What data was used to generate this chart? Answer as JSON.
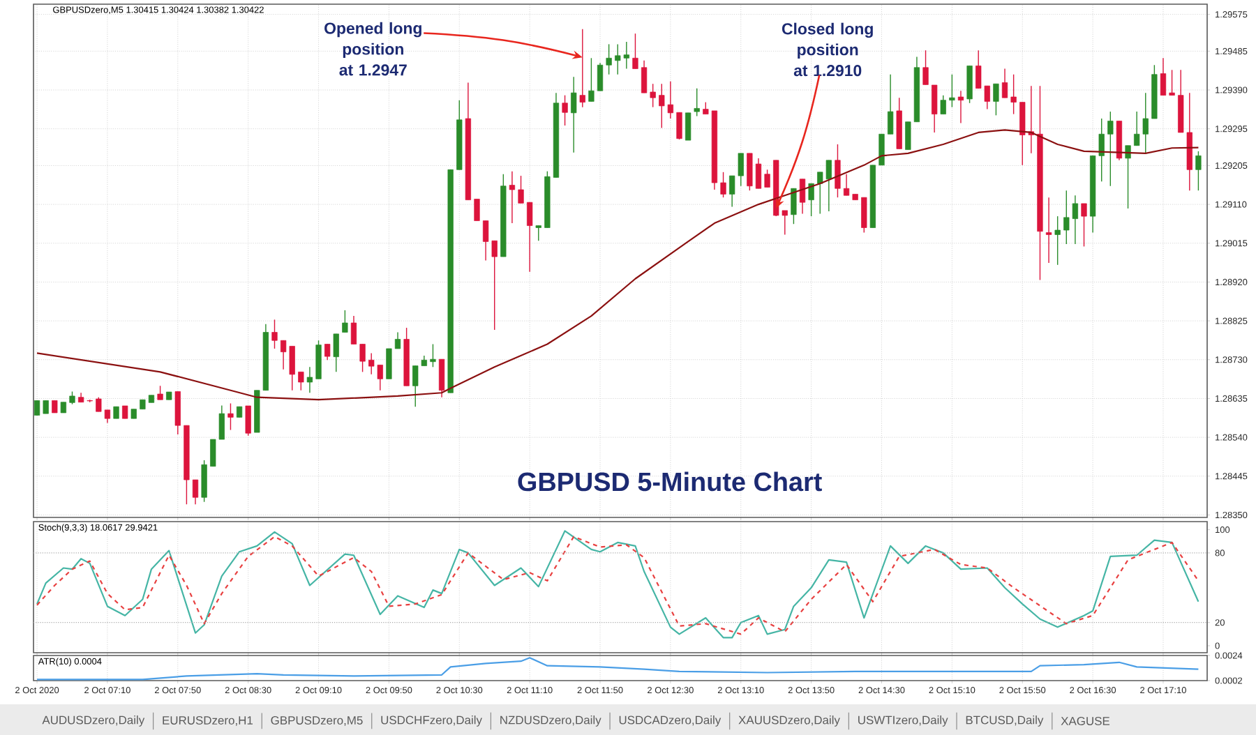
{
  "chart_data": [
    {
      "type": "candlestick",
      "title": "GBPUSD 5-Minute Chart",
      "subtitle": "GBPUSDzero,M5  1.30415 1.30424 1.30382 1.30422",
      "x": [
        "2020-10-02T06:30",
        "2020-10-02T06:35",
        "2020-10-02T06:40",
        "2020-10-02T06:45",
        "2020-10-02T06:50",
        "2020-10-02T06:55",
        "2020-10-02T07:00",
        "2020-10-02T07:05",
        "2020-10-02T07:10",
        "2020-10-02T07:15",
        "2020-10-02T07:20",
        "2020-10-02T07:25",
        "2020-10-02T07:30",
        "2020-10-02T07:35",
        "2020-10-02T07:40",
        "2020-10-02T07:45",
        "2020-10-02T07:50",
        "2020-10-02T07:55",
        "2020-10-02T08:00",
        "2020-10-02T08:05",
        "2020-10-02T08:10",
        "2020-10-02T08:15",
        "2020-10-02T08:20",
        "2020-10-02T08:25",
        "2020-10-02T08:30",
        "2020-10-02T08:35",
        "2020-10-02T08:40",
        "2020-10-02T08:45",
        "2020-10-02T08:50",
        "2020-10-02T08:55",
        "2020-10-02T09:00",
        "2020-10-02T09:05",
        "2020-10-02T09:10",
        "2020-10-02T09:15",
        "2020-10-02T09:20",
        "2020-10-02T09:25",
        "2020-10-02T09:30",
        "2020-10-02T09:35",
        "2020-10-02T09:40",
        "2020-10-02T09:45",
        "2020-10-02T09:50",
        "2020-10-02T09:55",
        "2020-10-02T10:00",
        "2020-10-02T10:05",
        "2020-10-02T10:10",
        "2020-10-02T10:15",
        "2020-10-02T10:20",
        "2020-10-02T10:25",
        "2020-10-02T10:30",
        "2020-10-02T10:35",
        "2020-10-02T10:40",
        "2020-10-02T10:45",
        "2020-10-02T10:50",
        "2020-10-02T10:55",
        "2020-10-02T11:00",
        "2020-10-02T11:05",
        "2020-10-02T11:10",
        "2020-10-02T11:15",
        "2020-10-02T11:20",
        "2020-10-02T11:25",
        "2020-10-02T11:30",
        "2020-10-02T11:35",
        "2020-10-02T11:40",
        "2020-10-02T11:45",
        "2020-10-02T11:50",
        "2020-10-02T11:55",
        "2020-10-02T12:00",
        "2020-10-02T12:05",
        "2020-10-02T12:10",
        "2020-10-02T12:15",
        "2020-10-02T12:20",
        "2020-10-02T12:25",
        "2020-10-02T12:30",
        "2020-10-02T12:35",
        "2020-10-02T12:40",
        "2020-10-02T12:45",
        "2020-10-02T12:50",
        "2020-10-02T12:55",
        "2020-10-02T13:00",
        "2020-10-02T13:05",
        "2020-10-02T13:10",
        "2020-10-02T13:15",
        "2020-10-02T13:20",
        "2020-10-02T13:25",
        "2020-10-02T13:30",
        "2020-10-02T13:35",
        "2020-10-02T13:40",
        "2020-10-02T13:45",
        "2020-10-02T13:50",
        "2020-10-02T13:55",
        "2020-10-02T14:00",
        "2020-10-02T14:05",
        "2020-10-02T14:10",
        "2020-10-02T14:15",
        "2020-10-02T14:20",
        "2020-10-02T14:25",
        "2020-10-02T14:30",
        "2020-10-02T14:35",
        "2020-10-02T14:40",
        "2020-10-02T14:45",
        "2020-10-02T14:50",
        "2020-10-02T14:55",
        "2020-10-02T15:00",
        "2020-10-02T15:05",
        "2020-10-02T15:10",
        "2020-10-02T15:15",
        "2020-10-02T15:20",
        "2020-10-02T15:25",
        "2020-10-02T15:30",
        "2020-10-02T15:35",
        "2020-10-02T15:40",
        "2020-10-02T15:45",
        "2020-10-02T15:50",
        "2020-10-02T15:55",
        "2020-10-02T16:00",
        "2020-10-02T16:05",
        "2020-10-02T16:10",
        "2020-10-02T16:15",
        "2020-10-02T16:20",
        "2020-10-02T16:25",
        "2020-10-02T16:30",
        "2020-10-02T16:35",
        "2020-10-02T16:40",
        "2020-10-02T16:45",
        "2020-10-02T16:50",
        "2020-10-02T16:55",
        "2020-10-02T17:00",
        "2020-10-02T17:05",
        "2020-10-02T17:10",
        "2020-10-02T17:15",
        "2020-10-02T17:20",
        "2020-10-02T17:25",
        "2020-10-02T17:30"
      ],
      "ohlc": [
        [
          1.28594,
          1.2863,
          1.28594,
          1.2863
        ],
        [
          1.28598,
          1.2863,
          1.28598,
          1.2863
        ],
        [
          1.2863,
          1.2863,
          1.286,
          1.286
        ],
        [
          1.286,
          1.28626,
          1.286,
          1.28626
        ],
        [
          1.28625,
          1.28652,
          1.28621,
          1.28641
        ],
        [
          1.28638,
          1.28649,
          1.28626,
          1.28626
        ],
        [
          1.2863,
          1.28632,
          1.28626,
          1.28629
        ],
        [
          1.28634,
          1.28638,
          1.28603,
          1.28603
        ],
        [
          1.28607,
          1.28607,
          1.28575,
          1.28586
        ],
        [
          1.28586,
          1.28615,
          1.28586,
          1.28615
        ],
        [
          1.28617,
          1.28617,
          1.28586,
          1.28586
        ],
        [
          1.28586,
          1.28609,
          1.28586,
          1.28609
        ],
        [
          1.28609,
          1.28632,
          1.28609,
          1.28632
        ],
        [
          1.28625,
          1.28643,
          1.28625,
          1.28643
        ],
        [
          1.28646,
          1.28666,
          1.28632,
          1.28632
        ],
        [
          1.28632,
          1.28651,
          1.28632,
          1.28651
        ],
        [
          1.28652,
          1.28652,
          1.28547,
          1.28569
        ],
        [
          1.28569,
          1.28569,
          1.28376,
          1.28436
        ],
        [
          1.28436,
          1.28436,
          1.28376,
          1.28393
        ],
        [
          1.28393,
          1.28484,
          1.28382,
          1.28473
        ],
        [
          1.28469,
          1.28535,
          1.28469,
          1.28535
        ],
        [
          1.28535,
          1.28618,
          1.28535,
          1.28598
        ],
        [
          1.28598,
          1.28623,
          1.28558,
          1.28589
        ],
        [
          1.28589,
          1.28615,
          1.28589,
          1.28615
        ],
        [
          1.28617,
          1.28617,
          1.28544,
          1.2855
        ],
        [
          1.28552,
          1.28655,
          1.28552,
          1.28655
        ],
        [
          1.28655,
          1.28817,
          1.28655,
          1.28797
        ],
        [
          1.28797,
          1.28828,
          1.28757,
          1.28777
        ],
        [
          1.28777,
          1.28777,
          1.28706,
          1.28749
        ],
        [
          1.28763,
          1.28763,
          1.28655,
          1.28694
        ],
        [
          1.287,
          1.287,
          1.28655,
          1.28675
        ],
        [
          1.28675,
          1.28712,
          1.28649,
          1.28687
        ],
        [
          1.28683,
          1.28777,
          1.28683,
          1.28766
        ],
        [
          1.28768,
          1.28768,
          1.28729,
          1.28738
        ],
        [
          1.28737,
          1.28793,
          1.287,
          1.28793
        ],
        [
          1.28797,
          1.28851,
          1.28797,
          1.2882
        ],
        [
          1.2882,
          1.28837,
          1.28768,
          1.28768
        ],
        [
          1.28768,
          1.28768,
          1.287,
          1.28726
        ],
        [
          1.28729,
          1.28746,
          1.28694,
          1.28714
        ],
        [
          1.28717,
          1.28717,
          1.28655,
          1.28683
        ],
        [
          1.28683,
          1.28757,
          1.28683,
          1.28757
        ],
        [
          1.28757,
          1.28797,
          1.28757,
          1.2878
        ],
        [
          1.2878,
          1.28808,
          1.28666,
          1.28666
        ],
        [
          1.28666,
          1.28715,
          1.28615,
          1.28715
        ],
        [
          1.28715,
          1.2874,
          1.28715,
          1.28729
        ],
        [
          1.28725,
          1.28768,
          1.28712,
          1.28731
        ],
        [
          1.28731,
          1.28731,
          1.28638,
          1.28655
        ],
        [
          1.28649,
          1.29195,
          1.28649,
          1.29195
        ],
        [
          1.29195,
          1.29365,
          1.29195,
          1.29317
        ],
        [
          1.2932,
          1.29408,
          1.29121,
          1.29121
        ],
        [
          1.29123,
          1.29123,
          1.2907,
          1.2907
        ],
        [
          1.2907,
          1.2907,
          1.28973,
          1.29019
        ],
        [
          1.29021,
          1.29021,
          1.28803,
          1.28982
        ],
        [
          1.28982,
          1.29184,
          1.28982,
          1.29155
        ],
        [
          1.29157,
          1.29191,
          1.29064,
          1.29146
        ],
        [
          1.29146,
          1.2918,
          1.29113,
          1.29113
        ],
        [
          1.29115,
          1.29115,
          1.28945,
          1.29058
        ],
        [
          1.29053,
          1.29058,
          1.29021,
          1.29058
        ],
        [
          1.29053,
          1.29191,
          1.29053,
          1.29178
        ],
        [
          1.29176,
          1.29383,
          1.29176,
          1.29358
        ],
        [
          1.29358,
          1.29377,
          1.29303,
          1.29335
        ],
        [
          1.29334,
          1.29422,
          1.29237,
          1.29383
        ],
        [
          1.29377,
          1.29539,
          1.29348,
          1.2936
        ],
        [
          1.29362,
          1.29468,
          1.29362,
          1.29388
        ],
        [
          1.29388,
          1.29456,
          1.29388,
          1.29451
        ],
        [
          1.29451,
          1.29502,
          1.29428,
          1.29468
        ],
        [
          1.29462,
          1.29502,
          1.29428,
          1.29474
        ],
        [
          1.29468,
          1.29508,
          1.29442,
          1.29476
        ],
        [
          1.29468,
          1.29528,
          1.29442,
          1.29442
        ],
        [
          1.29445,
          1.29462,
          1.29383,
          1.29383
        ],
        [
          1.29385,
          1.29405,
          1.29348,
          1.29371
        ],
        [
          1.29377,
          1.29405,
          1.29297,
          1.29351
        ],
        [
          1.29354,
          1.29411,
          1.2932,
          1.29334
        ],
        [
          1.29335,
          1.29335,
          1.29269,
          1.29271
        ],
        [
          1.29267,
          1.29334,
          1.29267,
          1.29334
        ],
        [
          1.29337,
          1.29394,
          1.29326,
          1.29345
        ],
        [
          1.29343,
          1.2936,
          1.29331,
          1.29331
        ],
        [
          1.29339,
          1.29339,
          1.29146,
          1.29163
        ],
        [
          1.29163,
          1.29189,
          1.29127,
          1.29135
        ],
        [
          1.29135,
          1.2918,
          1.29104,
          1.2918
        ],
        [
          1.2918,
          1.29235,
          1.29155,
          1.29235
        ],
        [
          1.29235,
          1.29235,
          1.29144,
          1.29155
        ],
        [
          1.29209,
          1.29223,
          1.29149,
          1.29149
        ],
        [
          1.29184,
          1.29195,
          1.29152,
          1.29152
        ],
        [
          1.29218,
          1.29218,
          1.29081,
          1.29083
        ],
        [
          1.29095,
          1.29095,
          1.29036,
          1.29083
        ],
        [
          1.29085,
          1.29149,
          1.29062,
          1.29149
        ],
        [
          1.29172,
          1.29172,
          1.29087,
          1.29115
        ],
        [
          1.29121,
          1.29161,
          1.29081,
          1.29161
        ],
        [
          1.29161,
          1.29189,
          1.29087,
          1.29189
        ],
        [
          1.29172,
          1.29218,
          1.29093,
          1.29218
        ],
        [
          1.29218,
          1.29257,
          1.29127,
          1.29149
        ],
        [
          1.29149,
          1.29184,
          1.29132,
          1.29132
        ],
        [
          1.29135,
          1.29135,
          1.29121,
          1.29121
        ],
        [
          1.29127,
          1.29127,
          1.29041,
          1.29053
        ],
        [
          1.29053,
          1.29206,
          1.29053,
          1.29206
        ],
        [
          1.29206,
          1.29282,
          1.29206,
          1.29282
        ],
        [
          1.29282,
          1.29428,
          1.29282,
          1.29337
        ],
        [
          1.29339,
          1.29371,
          1.29246,
          1.29246
        ],
        [
          1.29244,
          1.29312,
          1.29244,
          1.29312
        ],
        [
          1.29312,
          1.29471,
          1.29312,
          1.29445
        ],
        [
          1.29445,
          1.29487,
          1.29403,
          1.29403
        ],
        [
          1.29402,
          1.29402,
          1.29286,
          1.29331
        ],
        [
          1.29331,
          1.29377,
          1.29331,
          1.29365
        ],
        [
          1.29365,
          1.29428,
          1.29348,
          1.29371
        ],
        [
          1.29373,
          1.29388,
          1.29309,
          1.29365
        ],
        [
          1.29368,
          1.29449,
          1.29358,
          1.29449
        ],
        [
          1.29449,
          1.29487,
          1.29394,
          1.29394
        ],
        [
          1.294,
          1.294,
          1.29343,
          1.29362
        ],
        [
          1.29362,
          1.29405,
          1.29328,
          1.29405
        ],
        [
          1.29408,
          1.29442,
          1.29371,
          1.29371
        ],
        [
          1.29373,
          1.29428,
          1.29331,
          1.2936
        ],
        [
          1.2936,
          1.2936,
          1.29206,
          1.2928
        ],
        [
          1.29288,
          1.294,
          1.29235,
          1.2928
        ],
        [
          1.29282,
          1.294,
          1.28925,
          1.29044
        ],
        [
          1.29041,
          1.29127,
          1.28967,
          1.29036
        ],
        [
          1.29036,
          1.29081,
          1.28962,
          1.29047
        ],
        [
          1.29047,
          1.29144,
          1.29013,
          1.29078
        ],
        [
          1.29075,
          1.29132,
          1.29013,
          1.29112
        ],
        [
          1.29112,
          1.29112,
          1.29007,
          1.29081
        ],
        [
          1.29081,
          1.29229,
          1.29041,
          1.29229
        ],
        [
          1.29229,
          1.2932,
          1.29166,
          1.29282
        ],
        [
          1.29282,
          1.29337,
          1.29155,
          1.29314
        ],
        [
          1.29314,
          1.29314,
          1.29218,
          1.29223
        ],
        [
          1.29223,
          1.29254,
          1.291,
          1.29254
        ],
        [
          1.29254,
          1.29337,
          1.29254,
          1.29282
        ],
        [
          1.29282,
          1.29383,
          1.29235,
          1.2932
        ],
        [
          1.2932,
          1.29451,
          1.2932,
          1.29428
        ],
        [
          1.2943,
          1.29468,
          1.29377,
          1.29377
        ],
        [
          1.29383,
          1.29439,
          1.29377,
          1.29377
        ],
        [
          1.29377,
          1.29439,
          1.29286,
          1.29286
        ],
        [
          1.29286,
          1.29383,
          1.29144,
          1.29195
        ],
        [
          1.29195,
          1.2924,
          1.29144,
          1.29229
        ]
      ],
      "colors": [
        "#2a8c2a",
        "#2a8c2a",
        "#dc143c",
        "#2a8c2a",
        "#2a8c2a",
        "#dc143c",
        "#dc143c",
        "#dc143c",
        "#dc143c",
        "#2a8c2a",
        "#dc143c",
        "#2a8c2a",
        "#2a8c2a",
        "#2a8c2a",
        "#dc143c",
        "#2a8c2a",
        "#dc143c",
        "#dc143c",
        "#dc143c",
        "#2a8c2a",
        "#2a8c2a",
        "#2a8c2a",
        "#dc143c",
        "#2a8c2a",
        "#dc143c",
        "#2a8c2a",
        "#2a8c2a",
        "#dc143c",
        "#dc143c",
        "#dc143c",
        "#dc143c",
        "#2a8c2a",
        "#2a8c2a",
        "#dc143c",
        "#2a8c2a",
        "#2a8c2a",
        "#dc143c",
        "#dc143c",
        "#dc143c",
        "#dc143c",
        "#2a8c2a",
        "#2a8c2a",
        "#dc143c",
        "#2a8c2a",
        "#2a8c2a",
        "#2a8c2a",
        "#dc143c",
        "#2a8c2a",
        "#2a8c2a",
        "#dc143c",
        "#dc143c",
        "#dc143c",
        "#dc143c",
        "#2a8c2a",
        "#dc143c",
        "#dc143c",
        "#dc143c",
        "#2a8c2a",
        "#2a8c2a",
        "#2a8c2a",
        "#dc143c",
        "#2a8c2a",
        "#dc143c",
        "#2a8c2a",
        "#2a8c2a",
        "#2a8c2a",
        "#2a8c2a",
        "#2a8c2a",
        "#dc143c",
        "#dc143c",
        "#dc143c",
        "#dc143c",
        "#dc143c",
        "#dc143c",
        "#2a8c2a",
        "#2a8c2a",
        "#dc143c",
        "#dc143c",
        "#dc143c",
        "#2a8c2a",
        "#2a8c2a",
        "#dc143c",
        "#dc143c",
        "#dc143c",
        "#dc143c",
        "#dc143c",
        "#2a8c2a",
        "#dc143c",
        "#2a8c2a",
        "#2a8c2a",
        "#2a8c2a",
        "#dc143c",
        "#dc143c",
        "#dc143c",
        "#dc143c",
        "#2a8c2a",
        "#2a8c2a",
        "#2a8c2a",
        "#dc143c",
        "#2a8c2a",
        "#2a8c2a",
        "#dc143c",
        "#dc143c",
        "#2a8c2a",
        "#2a8c2a",
        "#dc143c",
        "#2a8c2a",
        "#dc143c",
        "#dc143c",
        "#2a8c2a",
        "#dc143c",
        "#dc143c",
        "#dc143c",
        "#dc143c",
        "#dc143c",
        "#dc143c",
        "#2a8c2a",
        "#2a8c2a",
        "#2a8c2a",
        "#dc143c",
        "#2a8c2a",
        "#2a8c2a",
        "#2a8c2a",
        "#dc143c",
        "#2a8c2a",
        "#2a8c2a",
        "#2a8c2a",
        "#2a8c2a",
        "#dc143c",
        "#dc143c",
        "#dc143c",
        "#dc143c",
        "#2a8c2a"
      ],
      "series": [
        {
          "type": "line",
          "color": "#8b1010",
          "x": [
            "2020-10-02T06:30",
            "2020-10-02T07:40",
            "2020-10-02T08:20",
            "2020-10-02T08:35",
            "2020-10-02T09:10",
            "2020-10-02T09:55",
            "2020-10-02T10:20",
            "2020-10-02T10:25",
            "2020-10-02T10:50",
            "2020-10-02T11:20",
            "2020-10-02T11:45",
            "2020-10-02T12:10",
            "2020-10-02T12:40",
            "2020-10-02T12:55",
            "2020-10-02T13:20",
            "2020-10-02T13:35",
            "2020-10-02T13:55",
            "2020-10-02T14:20",
            "2020-10-02T14:30",
            "2020-10-02T14:45",
            "2020-10-02T15:05",
            "2020-10-02T15:25",
            "2020-10-02T15:40",
            "2020-10-02T15:55",
            "2020-10-02T16:10",
            "2020-10-02T16:25",
            "2020-10-02T17:00",
            "2020-10-02T17:15",
            "2020-10-02T17:30"
          ],
          "values": [
            1.28746,
            1.287,
            1.28655,
            1.28638,
            1.28632,
            1.28641,
            1.28649,
            1.2866,
            1.28712,
            1.28768,
            1.28837,
            1.28928,
            1.29019,
            1.29064,
            1.2911,
            1.29132,
            1.29161,
            1.29206,
            1.29229,
            1.29235,
            1.29257,
            1.29286,
            1.29292,
            1.29286,
            1.29257,
            1.2924,
            1.29235,
            1.29248,
            1.29249
          ]
        }
      ],
      "xlim": [
        "2020-10-02T06:28",
        "2020-10-02T17:35"
      ],
      "xticks": [
        {
          "value": "2020-10-02T06:30",
          "label": null
        },
        {
          "value": "2020-10-02T07:10",
          "label": null
        },
        {
          "value": "2020-10-02T07:50",
          "label": null
        },
        {
          "value": "2020-10-02T08:30",
          "label": null
        },
        {
          "value": "2020-10-02T09:10",
          "label": null
        },
        {
          "value": "2020-10-02T09:50",
          "label": null
        },
        {
          "value": "2020-10-02T10:30",
          "label": null
        },
        {
          "value": "2020-10-02T11:10",
          "label": null
        },
        {
          "value": "2020-10-02T11:50",
          "label": null
        },
        {
          "value": "2020-10-02T12:30",
          "label": null
        },
        {
          "value": "2020-10-02T13:10",
          "label": null
        },
        {
          "value": "2020-10-02T13:50",
          "label": null
        },
        {
          "value": "2020-10-02T14:30",
          "label": null
        },
        {
          "value": "2020-10-02T15:10",
          "label": null
        },
        {
          "value": "2020-10-02T15:50",
          "label": null
        },
        {
          "value": "2020-10-02T16:30",
          "label": null
        },
        {
          "value": "2020-10-02T17:10",
          "label": null
        }
      ],
      "ylim": [
        1.28344,
        1.296
      ],
      "yticks": [
        1.29575,
        1.29485,
        {
          "value": 1.2939,
          "label": "1.29390"
        },
        1.29295,
        1.29205,
        {
          "value": 1.2911,
          "label": "1.29110"
        },
        1.29015,
        {
          "value": 1.2892,
          "label": "1.28920"
        },
        1.28825,
        {
          "value": 1.2873,
          "label": "1.28730"
        },
        1.28635,
        {
          "value": 1.2854,
          "label": "1.28540"
        },
        1.28445,
        {
          "value": 1.2835,
          "label": "1.28350"
        }
      ],
      "grid": true,
      "tick_labels": "y",
      "annotations": [
        {
          "text": "Opened long position at 1.2947",
          "x": "2020-10-02T11:40",
          "y": 1.2947
        },
        {
          "text": "Closed long position at 1.2910",
          "x": "2020-10-02T13:30",
          "y": 1.291
        }
      ]
    },
    {
      "type": "line",
      "title": "Stoch(9,3,3) 18.0617 29.9421",
      "series": [
        {
          "color": "#45b5a5",
          "line_style": "solid",
          "x": [
            "2020-10-02T06:30",
            "2020-10-02T06:35",
            "2020-10-02T06:45",
            "2020-10-02T06:50",
            "2020-10-02T06:55",
            "2020-10-02T07:00",
            "2020-10-02T07:10",
            "2020-10-02T07:20",
            "2020-10-02T07:30",
            "2020-10-02T07:35",
            "2020-10-02T07:45",
            "2020-10-02T08:00",
            "2020-10-02T08:05",
            "2020-10-02T08:15",
            "2020-10-02T08:25",
            "2020-10-02T08:35",
            "2020-10-02T08:45",
            "2020-10-02T08:55",
            "2020-10-02T09:05",
            "2020-10-02T09:25",
            "2020-10-02T09:30",
            "2020-10-02T09:45",
            "2020-10-02T09:55",
            "2020-10-02T10:10",
            "2020-10-02T10:15",
            "2020-10-02T10:20",
            "2020-10-02T10:30",
            "2020-10-02T10:35",
            "2020-10-02T10:50",
            "2020-10-02T11:05",
            "2020-10-02T11:15",
            "2020-10-02T11:30",
            "2020-10-02T11:45",
            "2020-10-02T11:50",
            "2020-10-02T12:00",
            "2020-10-02T12:10",
            "2020-10-02T12:15",
            "2020-10-02T12:30",
            "2020-10-02T12:35",
            "2020-10-02T12:50",
            "2020-10-02T13:00",
            "2020-10-02T13:05",
            "2020-10-02T13:10",
            "2020-10-02T13:20",
            "2020-10-02T13:25",
            "2020-10-02T13:35",
            "2020-10-02T13:40",
            "2020-10-02T13:50",
            "2020-10-02T14:00",
            "2020-10-02T14:10",
            "2020-10-02T14:20",
            "2020-10-02T14:35",
            "2020-10-02T14:45",
            "2020-10-02T14:55",
            "2020-10-02T15:05",
            "2020-10-02T15:15",
            "2020-10-02T15:30",
            "2020-10-02T15:40",
            "2020-10-02T15:50",
            "2020-10-02T16:00",
            "2020-10-02T16:10",
            "2020-10-02T16:25",
            "2020-10-02T16:30",
            "2020-10-02T16:40",
            "2020-10-02T16:55",
            "2020-10-02T17:05",
            "2020-10-02T17:15",
            "2020-10-02T17:30"
          ],
          "values": [
            36,
            54,
            67,
            66,
            75,
            71,
            34,
            26,
            40,
            66,
            82,
            11,
            18,
            60,
            81,
            86,
            98,
            88,
            52,
            79,
            78,
            27,
            43,
            33,
            48,
            45,
            83,
            80,
            52,
            67,
            51,
            99,
            83,
            81,
            89,
            86,
            64,
            16,
            10,
            24,
            7,
            7,
            20,
            26,
            10,
            14,
            34,
            50,
            74,
            72,
            24,
            86,
            71,
            86,
            80,
            66,
            67,
            50,
            36,
            23,
            16,
            26,
            30,
            77,
            78,
            91,
            89,
            38
          ]
        },
        {
          "color": "#e84040",
          "line_style": "dashed",
          "x": [
            "2020-10-02T06:30",
            "2020-10-02T06:40",
            "2020-10-02T06:50",
            "2020-10-02T07:00",
            "2020-10-02T07:10",
            "2020-10-02T07:20",
            "2020-10-02T07:30",
            "2020-10-02T07:45",
            "2020-10-02T07:55",
            "2020-10-02T08:05",
            "2020-10-02T08:15",
            "2020-10-02T08:30",
            "2020-10-02T08:45",
            "2020-10-02T08:55",
            "2020-10-02T09:10",
            "2020-10-02T09:30",
            "2020-10-02T09:40",
            "2020-10-02T09:50",
            "2020-10-02T10:05",
            "2020-10-02T10:20",
            "2020-10-02T10:35",
            "2020-10-02T10:55",
            "2020-10-02T11:10",
            "2020-10-02T11:20",
            "2020-10-02T11:35",
            "2020-10-02T11:50",
            "2020-10-02T12:05",
            "2020-10-02T12:15",
            "2020-10-02T12:35",
            "2020-10-02T12:50",
            "2020-10-02T13:10",
            "2020-10-02T13:20",
            "2020-10-02T13:35",
            "2020-10-02T13:50",
            "2020-10-02T14:10",
            "2020-10-02T14:25",
            "2020-10-02T14:40",
            "2020-10-02T15:00",
            "2020-10-02T15:15",
            "2020-10-02T15:30",
            "2020-10-02T15:45",
            "2020-10-02T16:15",
            "2020-10-02T16:30",
            "2020-10-02T16:50",
            "2020-10-02T17:15",
            "2020-10-02T17:30"
          ],
          "values": [
            35,
            52,
            66,
            73,
            45,
            31,
            33,
            78,
            52,
            19,
            45,
            77,
            94,
            86,
            60,
            76,
            64,
            34,
            36,
            44,
            80,
            57,
            63,
            56,
            94,
            85,
            87,
            76,
            17,
            19,
            10,
            24,
            12,
            40,
            70,
            38,
            77,
            83,
            70,
            67,
            50,
            19,
            26,
            74,
            89,
            56
          ]
        }
      ],
      "xlim": [
        "2020-10-02T06:28",
        "2020-10-02T17:35"
      ],
      "xticks": [
        {
          "value": "2020-10-02T06:30",
          "label": null
        },
        {
          "value": "2020-10-02T07:10",
          "label": null
        },
        {
          "value": "2020-10-02T07:50",
          "label": null
        },
        {
          "value": "2020-10-02T08:30",
          "label": null
        },
        {
          "value": "2020-10-02T09:10",
          "label": null
        },
        {
          "value": "2020-10-02T09:50",
          "label": null
        },
        {
          "value": "2020-10-02T10:30",
          "label": null
        },
        {
          "value": "2020-10-02T11:10",
          "label": null
        },
        {
          "value": "2020-10-02T11:50",
          "label": null
        },
        {
          "value": "2020-10-02T12:30",
          "label": null
        },
        {
          "value": "2020-10-02T13:10",
          "label": null
        },
        {
          "value": "2020-10-02T13:50",
          "label": null
        },
        {
          "value": "2020-10-02T14:30",
          "label": null
        },
        {
          "value": "2020-10-02T15:10",
          "label": null
        },
        {
          "value": "2020-10-02T15:50",
          "label": null
        },
        {
          "value": "2020-10-02T16:30",
          "label": null
        },
        {
          "value": "2020-10-02T17:10",
          "label": null
        }
      ],
      "ylim": [
        -6,
        107
      ],
      "yticks": [
        0,
        20,
        80,
        100
      ],
      "ref_lines": [
        {
          "axis": "y",
          "value": 20,
          "color": "#a8a8a8",
          "line_style": "dotted"
        },
        {
          "axis": "y",
          "value": 80,
          "color": "#a8a8a8",
          "line_style": "dotted"
        }
      ],
      "grid": "x",
      "tick_labels": "y"
    },
    {
      "type": "line",
      "title": "ATR(10) 0.0004",
      "series": [
        {
          "color": "#4a9ee6",
          "x": [
            "2020-10-02T06:30",
            "2020-10-02T07:30",
            "2020-10-02T07:55",
            "2020-10-02T08:35",
            "2020-10-02T08:50",
            "2020-10-02T09:30",
            "2020-10-02T10:20",
            "2020-10-02T10:25",
            "2020-10-02T10:45",
            "2020-10-02T11:05",
            "2020-10-02T11:10",
            "2020-10-02T11:20",
            "2020-10-02T11:50",
            "2020-10-02T12:15",
            "2020-10-02T12:35",
            "2020-10-02T13:25",
            "2020-10-02T14:15",
            "2020-10-02T15:05",
            "2020-10-02T15:55",
            "2020-10-02T16:00",
            "2020-10-02T16:25",
            "2020-10-02T16:45",
            "2020-10-02T16:55",
            "2020-10-02T17:30"
          ],
          "values": [
            0.0003,
            0.0003,
            0.0006,
            0.0008,
            0.0007,
            0.0006,
            0.0007,
            0.0014,
            0.0017,
            0.0019,
            0.0022,
            0.0015,
            0.0014,
            0.0012,
            0.001,
            0.0009,
            0.001,
            0.001,
            0.001,
            0.0015,
            0.0016,
            0.0018,
            0.0014,
            0.0012
          ]
        }
      ],
      "xlim": [
        "2020-10-02T06:28",
        "2020-10-02T17:35"
      ],
      "xticks": [
        {
          "value": "2020-10-02T06:30",
          "label": "2 Oct 2020"
        },
        {
          "value": "2020-10-02T07:10",
          "label": "2 Oct 07:10"
        },
        {
          "value": "2020-10-02T07:50",
          "label": "2 Oct 07:50"
        },
        {
          "value": "2020-10-02T08:30",
          "label": "2 Oct 08:30"
        },
        {
          "value": "2020-10-02T09:10",
          "label": "2 Oct 09:10"
        },
        {
          "value": "2020-10-02T09:50",
          "label": "2 Oct 09:50"
        },
        {
          "value": "2020-10-02T10:30",
          "label": "2 Oct 10:30"
        },
        {
          "value": "2020-10-02T11:10",
          "label": "2 Oct 11:10"
        },
        {
          "value": "2020-10-02T11:50",
          "label": "2 Oct 11:50"
        },
        {
          "value": "2020-10-02T12:30",
          "label": "2 Oct 12:30"
        },
        {
          "value": "2020-10-02T13:10",
          "label": "2 Oct 13:10"
        },
        {
          "value": "2020-10-02T13:50",
          "label": "2 Oct 13:50"
        },
        {
          "value": "2020-10-02T14:30",
          "label": "2 Oct 14:30"
        },
        {
          "value": "2020-10-02T15:10",
          "label": "2 Oct 15:10"
        },
        {
          "value": "2020-10-02T15:50",
          "label": "2 Oct 15:50"
        },
        {
          "value": "2020-10-02T16:30",
          "label": "2 Oct 16:30"
        },
        {
          "value": "2020-10-02T17:10",
          "label": "2 Oct 17:10"
        }
      ],
      "ylim": [
        0.0002,
        0.0024
      ],
      "yticks": [
        0.0024,
        0.0002
      ],
      "grid": "x",
      "annotations": [
        "AUDUSDzero,Daily",
        "EURUSDzero,H1",
        "GBPUSDzero,M5",
        "USDCHFzero,Daily",
        "NZDUSDzero,Daily",
        "USDCADzero,Daily",
        "XAUUSDzero,Daily",
        "USWTIzero,Daily",
        "BTCUSD,Daily",
        "XAGUSE"
      ]
    }
  ]
}
